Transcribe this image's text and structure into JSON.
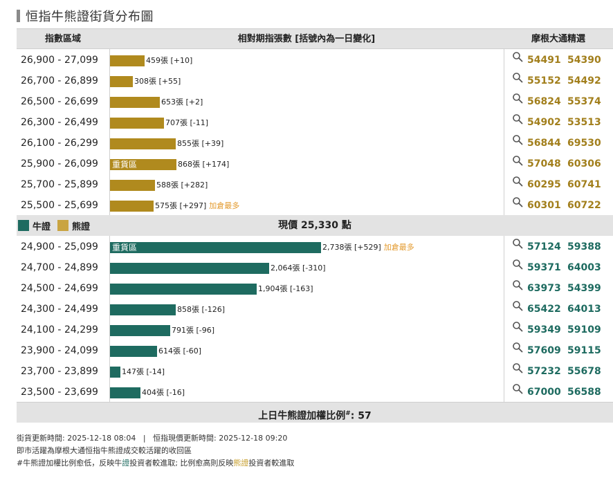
{
  "title": "恒指牛熊證街貨分布圖",
  "header": {
    "col_range": "指數區域",
    "col_dist": "相對期指張數 [括號內為一日變化]",
    "col_mg": "摩根大通精選"
  },
  "colors": {
    "bear": "#b08a1e",
    "bull": "#1e6b60",
    "note": "#e39a2d"
  },
  "max_contracts": 2738,
  "bear_rows": [
    {
      "range": "26,900 - 27,099",
      "contracts": 459,
      "label": "459張 [+10]",
      "tag": "",
      "note": "",
      "codes": [
        "54491",
        "54390"
      ]
    },
    {
      "range": "26,700 - 26,899",
      "contracts": 308,
      "label": "308張 [+55]",
      "tag": "",
      "note": "",
      "codes": [
        "55152",
        "54492"
      ]
    },
    {
      "range": "26,500 - 26,699",
      "contracts": 653,
      "label": "653張 [+2]",
      "tag": "",
      "note": "",
      "codes": [
        "56824",
        "55374"
      ]
    },
    {
      "range": "26,300 - 26,499",
      "contracts": 707,
      "label": "707張 [-11]",
      "tag": "",
      "note": "",
      "codes": [
        "54902",
        "53513"
      ]
    },
    {
      "range": "26,100 - 26,299",
      "contracts": 855,
      "label": "855張 [+39]",
      "tag": "",
      "note": "",
      "codes": [
        "56844",
        "69530"
      ]
    },
    {
      "range": "25,900 - 26,099",
      "contracts": 868,
      "label": "868張 [+174]",
      "tag": "重貨區",
      "note": "",
      "codes": [
        "57048",
        "60306"
      ]
    },
    {
      "range": "25,700 - 25,899",
      "contracts": 588,
      "label": "588張 [+282]",
      "tag": "",
      "note": "",
      "codes": [
        "60295",
        "60741"
      ]
    },
    {
      "range": "25,500 - 25,699",
      "contracts": 575,
      "label": "575張 [+297]",
      "tag": "",
      "note": "加倉最多",
      "codes": [
        "60301",
        "60722"
      ]
    }
  ],
  "legend": {
    "bull": "牛證",
    "bear": "熊證"
  },
  "current_price": "現價 25,330 點",
  "bull_rows": [
    {
      "range": "24,900 - 25,099",
      "contracts": 2738,
      "label": "2,738張 [+529]",
      "tag": "重貨區",
      "note": "加倉最多",
      "codes": [
        "57124",
        "59388"
      ]
    },
    {
      "range": "24,700 - 24,899",
      "contracts": 2064,
      "label": "2,064張 [-310]",
      "tag": "",
      "note": "",
      "codes": [
        "59371",
        "64003"
      ]
    },
    {
      "range": "24,500 - 24,699",
      "contracts": 1904,
      "label": "1,904張 [-163]",
      "tag": "",
      "note": "",
      "codes": [
        "63973",
        "54399"
      ]
    },
    {
      "range": "24,300 - 24,499",
      "contracts": 858,
      "label": "858張 [-126]",
      "tag": "",
      "note": "",
      "codes": [
        "65422",
        "64013"
      ]
    },
    {
      "range": "24,100 - 24,299",
      "contracts": 791,
      "label": "791張 [-96]",
      "tag": "",
      "note": "",
      "codes": [
        "59349",
        "59109"
      ]
    },
    {
      "range": "23,900 - 24,099",
      "contracts": 614,
      "label": "614張 [-60]",
      "tag": "",
      "note": "",
      "codes": [
        "57609",
        "59115"
      ]
    },
    {
      "range": "23,700 - 23,899",
      "contracts": 147,
      "label": "147張 [-14]",
      "tag": "",
      "note": "",
      "codes": [
        "57232",
        "55678"
      ]
    },
    {
      "range": "23,500 - 23,699",
      "contracts": 404,
      "label": "404張 [-16]",
      "tag": "",
      "note": "",
      "codes": [
        "67000",
        "56588"
      ]
    }
  ],
  "ratio": {
    "label": "上日牛熊證加權比例",
    "mark": "#",
    "value": ": 57"
  },
  "notes": {
    "update_line": "街貨更新時間: 2025-12-18 08:04   |   恒指現價更新時間: 2025-12-18 09:20",
    "line2": "即市活躍為摩根大通恒指牛熊證成交較活躍的收回區",
    "line3_a": "#牛熊證加權比例愈低，反映牛",
    "line3_b": "證",
    "line3_c": "投資者較進取; 比例愈高則反映",
    "line3_d": "熊證",
    "line3_e": "投資者較進取"
  }
}
